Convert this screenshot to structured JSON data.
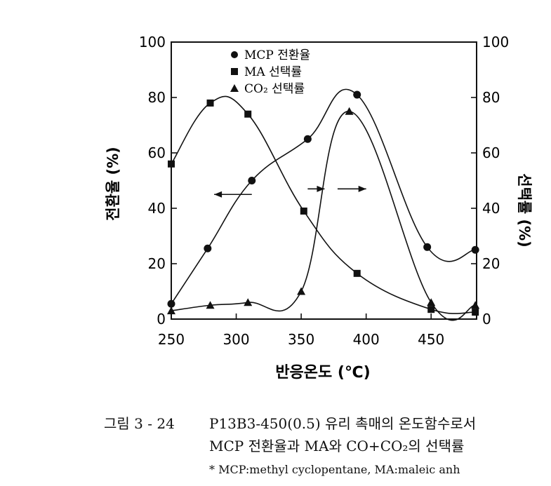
{
  "chart_data": {
    "type": "line",
    "xlabel": "반응온도 (℃)",
    "ylabel_left": "전환율 (%)",
    "ylabel_right": "선택률 (%)",
    "xlim": [
      250,
      485
    ],
    "ylim": [
      0,
      100
    ],
    "x_ticks": [
      250,
      300,
      350,
      400,
      450
    ],
    "y_ticks": [
      0,
      20,
      40,
      60,
      80,
      100
    ],
    "grid": false,
    "legend_position": "top-left",
    "series": [
      {
        "name": "MCP 전환율",
        "marker": "circle",
        "x": [
          250,
          278,
          312,
          355,
          393,
          447,
          484
        ],
        "y": [
          5.5,
          25.5,
          50,
          65,
          81,
          26,
          25
        ]
      },
      {
        "name": "MA 선택률",
        "marker": "square",
        "x": [
          250,
          280,
          309,
          352,
          393,
          450,
          484
        ],
        "y": [
          56,
          78,
          74,
          39,
          16.5,
          3.5,
          2.5
        ]
      },
      {
        "name": "CO₂ 선택률",
        "marker": "triangle",
        "x": [
          250,
          280,
          309,
          350,
          387,
          450,
          484
        ],
        "y": [
          3,
          5,
          6,
          10,
          75,
          6,
          5
        ]
      }
    ],
    "arrows": [
      {
        "direction": "left",
        "from_x": 312,
        "to_x": 283,
        "y": 45
      },
      {
        "direction": "right",
        "from_x": 378,
        "to_x": 400,
        "y": 47
      },
      {
        "direction": "right",
        "from_x": 355,
        "to_x": 368,
        "y": 47
      }
    ]
  },
  "caption": {
    "number": "그림 3 - 24",
    "line1": "P13B3-450(0.5) 유리 촉매의 온도함수로서",
    "line2": "MCP 전환율과 MA와 CO+CO₂의 선택률",
    "note": "* MCP:methyl cyclopentane, MA:maleic anh"
  }
}
